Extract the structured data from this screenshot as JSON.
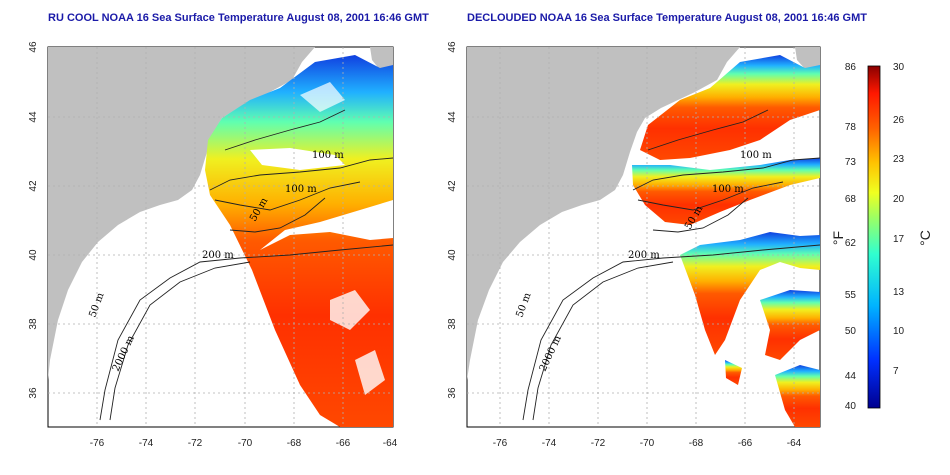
{
  "colors": {
    "title": "#1a1aa8",
    "land": "#c0c0c0",
    "contour": "#222222",
    "grid": "#b0b0b0"
  },
  "left_panel": {
    "title": "RU COOL NOAA 16 Sea Surface Temperature August 08, 2001 16:46 GMT",
    "contour_labels": [
      "100 m",
      "100 m",
      "50 m",
      "200 m",
      "50 m",
      "2000 m"
    ]
  },
  "right_panel": {
    "title": "DECLOUDED NOAA 16 Sea Surface Temperature August 08, 2001 16:46 GMT",
    "contour_labels": [
      "100 m",
      "100 m",
      "50 m",
      "200 m",
      "50 m",
      "2000 m"
    ]
  },
  "axes": {
    "lon_ticks": [
      "-76",
      "-74",
      "-72",
      "-70",
      "-68",
      "-66",
      "-64"
    ],
    "lat_ticks": [
      "46",
      "44",
      "42",
      "40",
      "38",
      "36"
    ]
  },
  "colorbar": {
    "fahrenheit_unit": "°F",
    "celsius_unit": "°C",
    "fahrenheit_ticks": [
      "86",
      "78",
      "73",
      "68",
      "62",
      "55",
      "50",
      "44",
      "40"
    ],
    "celsius_ticks": [
      "30",
      "26",
      "23",
      "20",
      "17",
      "13",
      "10",
      "7"
    ],
    "range_c": [
      4.5,
      30
    ]
  }
}
